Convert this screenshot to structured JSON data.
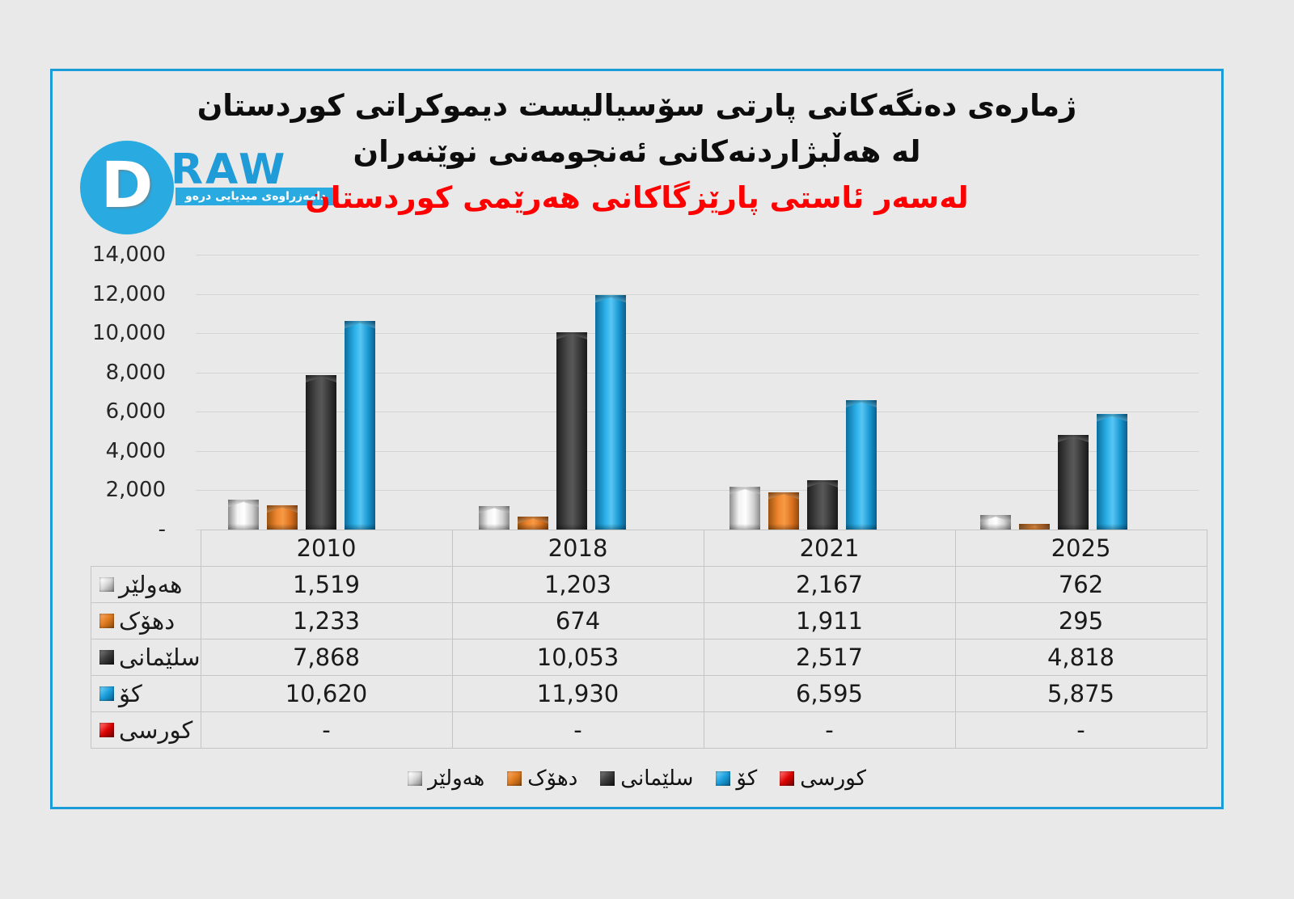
{
  "logo": {
    "circle_letter": "D",
    "brand": "RAW",
    "tagline": "دامەزراوەی میدیایی درەو"
  },
  "title": {
    "line1": "ژمارەی دەنگەکانی پارتی سۆسیالیست دیموکراتی کوردستان",
    "line2": "لە هەڵبژاردنەکانی ئەنجومەنی نوێنەران",
    "line3_red": "لەسەر ئاستی پارێزگاکانی هەرێمی کوردستان"
  },
  "chart_data": {
    "type": "bar",
    "title": "ژمارەی دەنگەکانی پارتی سۆسیالیست دیموکراتی کوردستان لە هەڵبژاردنەکانی ئەنجومەنی نوێنەران",
    "subtitle": "لەسەر ئاستی پارێزگاکانی هەرێمی کوردستان",
    "categories": [
      "2010",
      "2018",
      "2021",
      "2025"
    ],
    "series": [
      {
        "name": "هەولێر",
        "color": "#e8e8e8",
        "values": [
          1519,
          1203,
          2167,
          762
        ],
        "display": [
          "1,519",
          "1,203",
          "2,167",
          "762"
        ]
      },
      {
        "name": "دهۆک",
        "color": "#e87e27",
        "values": [
          1233,
          674,
          1911,
          295
        ],
        "display": [
          "1,233",
          "674",
          "1,911",
          "295"
        ]
      },
      {
        "name": "سلێمانی",
        "color": "#404040",
        "values": [
          7868,
          10053,
          2517,
          4818
        ],
        "display": [
          "7,868",
          "10,053",
          "2,517",
          "4,818"
        ]
      },
      {
        "name": "کۆ",
        "color": "#1da4e2",
        "values": [
          10620,
          11930,
          6595,
          5875
        ],
        "display": [
          "10,620",
          "11,930",
          "6,595",
          "5,875"
        ]
      },
      {
        "name": "کورسی",
        "color": "#dd0404",
        "values": [
          0,
          0,
          0,
          0
        ],
        "display": [
          "-",
          "-",
          "-",
          "-"
        ]
      }
    ],
    "ylim": [
      0,
      14000
    ],
    "y_ticks": [
      "14,000",
      "12,000",
      "10,000",
      "8,000",
      "6,000",
      "4,000",
      "2,000",
      "-"
    ],
    "grid": true,
    "legend_position": "bottom",
    "data_table": true,
    "frame_border_color": "#1b9cd8",
    "background_color": "#e9e9e9"
  }
}
